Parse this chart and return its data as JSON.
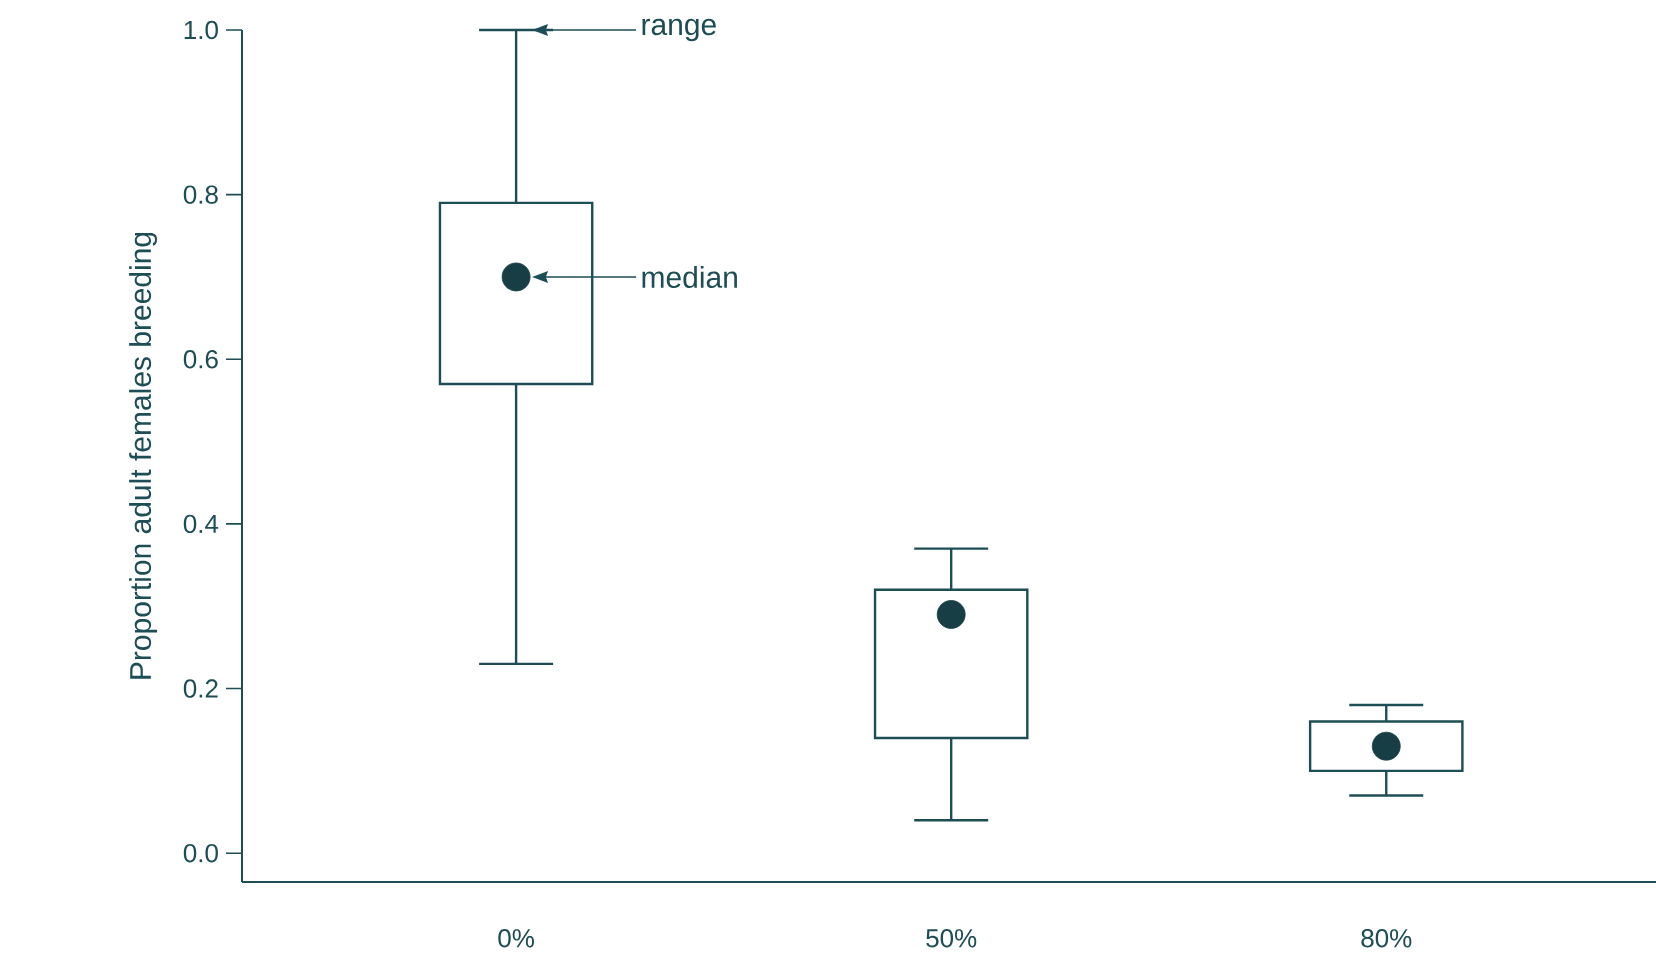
{
  "chart_data": {
    "type": "box",
    "ylabel": "Proportion adult females breeding",
    "categories": [
      "0%",
      "50%",
      "80%"
    ],
    "boxes": [
      {
        "low": 0.23,
        "q1": 0.57,
        "median": 0.7,
        "q3": 0.79,
        "high": 1.0
      },
      {
        "low": 0.04,
        "q1": 0.14,
        "median": 0.29,
        "q3": 0.32,
        "high": 0.37
      },
      {
        "low": 0.07,
        "q1": 0.1,
        "median": 0.13,
        "q3": 0.16,
        "high": 0.18
      }
    ],
    "color": "#1d4d55",
    "marker": "circle",
    "ylim": [
      -0.035,
      1.0
    ],
    "yticks": [
      {
        "value": 0,
        "label": "0.0"
      },
      {
        "value": 0.2,
        "label": "0.2"
      },
      {
        "value": 0.4,
        "label": "0.4"
      },
      {
        "value": 0.6,
        "label": "0.6"
      },
      {
        "value": 0.8,
        "label": "0.8"
      },
      {
        "value": 1.0,
        "label": "1.0"
      }
    ],
    "annotations": [
      "range",
      "median"
    ]
  }
}
